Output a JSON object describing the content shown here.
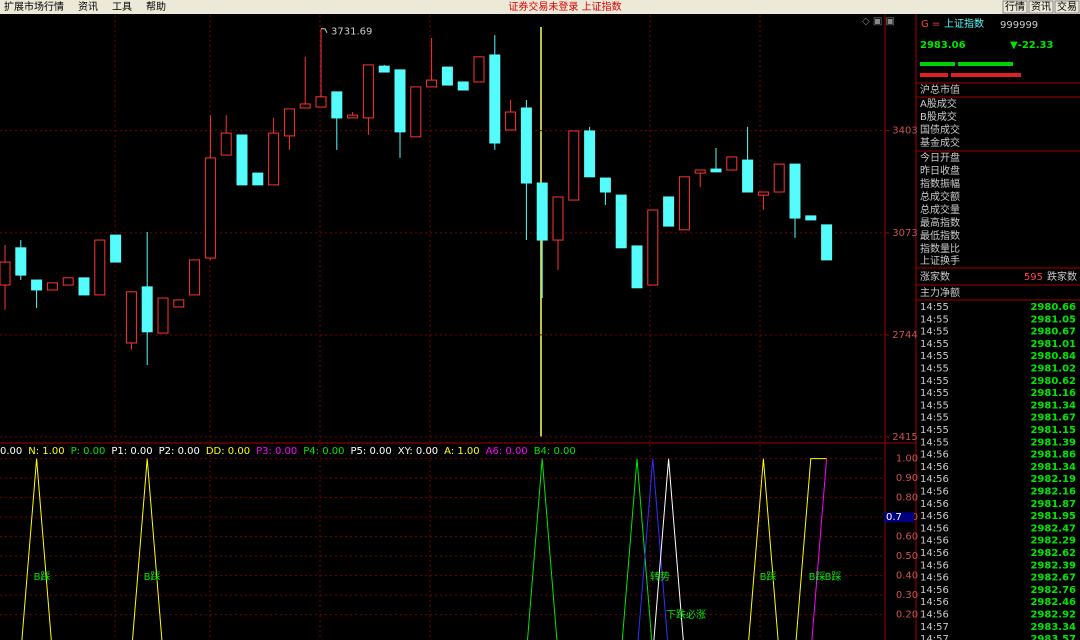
{
  "menu": [
    "扩展市场行情",
    "资讯",
    "工具",
    "帮助"
  ],
  "status": "证券交易未登录 上证指数",
  "buttons": [
    "行情",
    "资讯",
    "交易"
  ],
  "chart_data": {
    "type": "candlestick",
    "candles": [
      {
        "open": 2905,
        "high": 3034,
        "low": 2825,
        "close": 2979
      },
      {
        "open": 3025,
        "high": 3050,
        "low": 2921,
        "close": 2937
      },
      {
        "open": 2921,
        "high": 2921,
        "low": 2831,
        "close": 2889
      },
      {
        "open": 2889,
        "high": 2912,
        "low": 2889,
        "close": 2912
      },
      {
        "open": 2905,
        "high": 2928,
        "low": 2905,
        "close": 2928
      },
      {
        "open": 2928,
        "high": 2928,
        "low": 2873,
        "close": 2873
      },
      {
        "open": 2873,
        "high": 3050,
        "low": 2873,
        "close": 3050
      },
      {
        "open": 3066,
        "high": 3066,
        "low": 2979,
        "close": 2979
      },
      {
        "open": 2718,
        "high": 2883,
        "low": 2696,
        "close": 2883
      },
      {
        "open": 2899,
        "high": 3076,
        "low": 2647,
        "close": 2754
      },
      {
        "open": 2750,
        "high": 2863,
        "low": 2750,
        "close": 2863
      },
      {
        "open": 2834,
        "high": 2857,
        "low": 2834,
        "close": 2857
      },
      {
        "open": 2873,
        "high": 2986,
        "low": 2873,
        "close": 2986
      },
      {
        "open": 2992,
        "high": 3453,
        "low": 2986,
        "close": 3315
      },
      {
        "open": 3324,
        "high": 3453,
        "low": 3324,
        "close": 3395
      },
      {
        "open": 3389,
        "high": 3389,
        "low": 3228,
        "close": 3228
      },
      {
        "open": 3266,
        "high": 3266,
        "low": 3228,
        "close": 3228
      },
      {
        "open": 3228,
        "high": 3444,
        "low": 3228,
        "close": 3395
      },
      {
        "open": 3386,
        "high": 3473,
        "low": 3341,
        "close": 3473
      },
      {
        "open": 3476,
        "high": 3641,
        "low": 3476,
        "close": 3489
      },
      {
        "open": 3479,
        "high": 3731.69,
        "low": 3479,
        "close": 3512
      },
      {
        "open": 3528,
        "high": 3528,
        "low": 3341,
        "close": 3444
      },
      {
        "open": 3444,
        "high": 3463,
        "low": 3444,
        "close": 3453
      },
      {
        "open": 3444,
        "high": 3615,
        "low": 3389,
        "close": 3615
      },
      {
        "open": 3611,
        "high": 3615,
        "low": 3592,
        "close": 3592
      },
      {
        "open": 3599,
        "high": 3599,
        "low": 3315,
        "close": 3399
      },
      {
        "open": 3383,
        "high": 3544,
        "low": 3383,
        "close": 3544
      },
      {
        "open": 3544,
        "high": 3702,
        "low": 3544,
        "close": 3566
      },
      {
        "open": 3608,
        "high": 3608,
        "low": 3550,
        "close": 3550
      },
      {
        "open": 3560,
        "high": 3560,
        "low": 3534,
        "close": 3534
      },
      {
        "open": 3560,
        "high": 3641,
        "low": 3560,
        "close": 3641
      },
      {
        "open": 3647,
        "high": 3711,
        "low": 3341,
        "close": 3363
      },
      {
        "open": 3405,
        "high": 3502,
        "low": 3405,
        "close": 3463
      },
      {
        "open": 3476,
        "high": 3502,
        "low": 3050,
        "close": 3234
      },
      {
        "open": 3234,
        "high": 3234,
        "low": 2863,
        "close": 3050
      },
      {
        "open": 3050,
        "high": 3189,
        "low": 2954,
        "close": 3189
      },
      {
        "open": 3179,
        "high": 3402,
        "low": 3179,
        "close": 3402
      },
      {
        "open": 3402,
        "high": 3415,
        "low": 3254,
        "close": 3254
      },
      {
        "open": 3250,
        "high": 3250,
        "low": 3163,
        "close": 3205
      },
      {
        "open": 3195,
        "high": 3195,
        "low": 3025,
        "close": 3025
      },
      {
        "open": 3031,
        "high": 3031,
        "low": 2896,
        "close": 2896
      },
      {
        "open": 2905,
        "high": 3147,
        "low": 2905,
        "close": 3147
      },
      {
        "open": 3189,
        "high": 3189,
        "low": 3095,
        "close": 3095
      },
      {
        "open": 3083,
        "high": 3254,
        "low": 3083,
        "close": 3254
      },
      {
        "open": 3266,
        "high": 3276,
        "low": 3221,
        "close": 3276
      },
      {
        "open": 3279,
        "high": 3347,
        "low": 3270,
        "close": 3270
      },
      {
        "open": 3276,
        "high": 3318,
        "low": 3276,
        "close": 3318
      },
      {
        "open": 3308,
        "high": 3415,
        "low": 3205,
        "close": 3205
      },
      {
        "open": 3195,
        "high": 3205,
        "low": 3147,
        "close": 3205
      },
      {
        "open": 3205,
        "high": 3295,
        "low": 3205,
        "close": 3295
      },
      {
        "open": 3295,
        "high": 3295,
        "low": 3057,
        "close": 3121
      },
      {
        "open": 3128,
        "high": 3128,
        "low": 3115,
        "close": 3115
      },
      {
        "open": 3099,
        "high": 3099,
        "low": 2986,
        "close": 2986
      }
    ],
    "up_color": "#ff3232",
    "down_color": "#54fcfc",
    "max_label": 3731.69,
    "ylim": [
      2405,
      3776
    ],
    "yticks": [
      3403,
      3073,
      2744,
      2415
    ]
  },
  "indicator": {
    "type": "line",
    "legend": [
      {
        "text": "0.00",
        "color": "#ffffff"
      },
      {
        "text": "N: 1.00",
        "color": "#ffff00"
      },
      {
        "text": "P: 0.00",
        "color": "#00e600"
      },
      {
        "text": "P1: 0.00",
        "color": "#ffffff"
      },
      {
        "text": "P2: 0.00",
        "color": "#ffffff"
      },
      {
        "text": "DD: 0.00",
        "color": "#ffff00"
      },
      {
        "text": "P3: 0.00",
        "color": "#ff00ff"
      },
      {
        "text": "P4: 0.00",
        "color": "#00e600"
      },
      {
        "text": "P5: 0.00",
        "color": "#ffffff"
      },
      {
        "text": "XY: 0.00",
        "color": "#ffffff"
      },
      {
        "text": "A: 1.00",
        "color": "#ffff00"
      },
      {
        "text": "A6: 0.00",
        "color": "#ff00ff"
      },
      {
        "text": "B4: 0.00",
        "color": "#00e600"
      }
    ],
    "series": [
      {
        "color": "#ffff00",
        "values": [
          0,
          0,
          1,
          0,
          0,
          0,
          0,
          0,
          0,
          1,
          0,
          0,
          0,
          0,
          0,
          0,
          0,
          0,
          0,
          0,
          0,
          0,
          0,
          0,
          0,
          0,
          0,
          0,
          0,
          0,
          0,
          0,
          0,
          0,
          0,
          0,
          0,
          0,
          0,
          0,
          0,
          0,
          0,
          0,
          0,
          0,
          0,
          0,
          1,
          0,
          0,
          1,
          1
        ]
      },
      {
        "color": "#00e600",
        "values": [
          0,
          0,
          0,
          0,
          0,
          0,
          0,
          0,
          0,
          0,
          0,
          0,
          0,
          0,
          0,
          0,
          0,
          0,
          0,
          0,
          0,
          0,
          0,
          0,
          0,
          0,
          0,
          0,
          0,
          0,
          0,
          0,
          0,
          0,
          1,
          0,
          0,
          0,
          0,
          0,
          1,
          0,
          0,
          0,
          0,
          0,
          0,
          0,
          0,
          0,
          0,
          0,
          0
        ]
      },
      {
        "color": "#3030ff",
        "values": [
          0,
          0,
          0,
          0,
          0,
          0,
          0,
          0,
          0,
          0,
          0,
          0,
          0,
          0,
          0,
          0,
          0,
          0,
          0,
          0,
          0,
          0,
          0,
          0,
          0,
          0,
          0,
          0,
          0,
          0,
          0,
          0,
          0,
          0,
          0,
          0,
          0,
          0,
          0,
          0,
          0,
          1,
          0,
          0,
          0,
          0,
          0,
          0,
          0,
          0,
          0,
          0,
          0
        ]
      },
      {
        "color": "#ffffff",
        "values": [
          0,
          0,
          0,
          0,
          0,
          0,
          0,
          0,
          0,
          0,
          0,
          0,
          0,
          0,
          0,
          0,
          0,
          0,
          0,
          0,
          0,
          0,
          0,
          0,
          0,
          0,
          0,
          0,
          0,
          0,
          0,
          0,
          0,
          0,
          0,
          0,
          0,
          0,
          0,
          0,
          0,
          0,
          1,
          0,
          0,
          0,
          0,
          0,
          0,
          0,
          0,
          0,
          0
        ]
      },
      {
        "color": "#ff00ff",
        "values": [
          0,
          0,
          0,
          0,
          0,
          0,
          0,
          0,
          0,
          0,
          0,
          0,
          0,
          0,
          0,
          0,
          0,
          0,
          0,
          0,
          0,
          0,
          0,
          0,
          0,
          0,
          0,
          0,
          0,
          0,
          0,
          0,
          0,
          0,
          0,
          0,
          0,
          0,
          0,
          0,
          0,
          0,
          0,
          0,
          0,
          0,
          0,
          0,
          0,
          0,
          0,
          0,
          1
        ]
      }
    ],
    "annotations": [
      "B踩",
      "B踩",
      "转势",
      "下跌必涨",
      "B踩",
      "B踩",
      "B踩"
    ],
    "cursor_value": 0.7,
    "ylim": [
      0.07,
      1.07
    ],
    "yticks": [
      {
        "value": 1,
        "label": "1.00"
      },
      {
        "value": 0.9,
        "label": "0.90"
      },
      {
        "value": 0.8,
        "label": "0.80"
      },
      {
        "value": 0.7,
        "label": "0.70"
      },
      {
        "value": 0.6,
        "label": "0.60"
      },
      {
        "value": 0.5,
        "label": "0.50"
      },
      {
        "value": 0.4,
        "label": "0.40"
      },
      {
        "value": 0.3,
        "label": "0.30"
      },
      {
        "value": 0.2,
        "label": "0.20"
      }
    ]
  },
  "quote": {
    "prefix": "G =",
    "name": "上证指数",
    "code": "999999",
    "price": 2983.06,
    "change": "▼-22.33",
    "fields": [
      "沪总市值",
      "A股成交",
      "B股成交",
      "国债成交",
      "基金成交",
      "今日开盘",
      "昨日收盘",
      "指数振幅",
      "总成交额",
      "总成交量",
      "最高指数",
      "最低指数",
      "指数量比",
      "上证换手"
    ],
    "up_label": "涨家数",
    "up_count": 595,
    "down_label": "跌家数",
    "net_label": "主力净额",
    "ticks": [
      [
        "14:55",
        2980.66
      ],
      [
        "14:55",
        2981.05
      ],
      [
        "14:55",
        2980.67
      ],
      [
        "14:55",
        2981.01
      ],
      [
        "14:55",
        2980.84
      ],
      [
        "14:55",
        2981.02
      ],
      [
        "14:55",
        2980.62
      ],
      [
        "14:55",
        2981.16
      ],
      [
        "14:55",
        2981.34
      ],
      [
        "14:55",
        2981.67
      ],
      [
        "14:55",
        2981.15
      ],
      [
        "14:55",
        2981.39
      ],
      [
        "14:56",
        2981.86
      ],
      [
        "14:56",
        2981.34
      ],
      [
        "14:56",
        2982.19
      ],
      [
        "14:56",
        2982.16
      ],
      [
        "14:56",
        2981.87
      ],
      [
        "14:56",
        2981.95
      ],
      [
        "14:56",
        2982.47
      ],
      [
        "14:56",
        2982.29
      ],
      [
        "14:56",
        2982.62
      ],
      [
        "14:56",
        2982.39
      ],
      [
        "14:56",
        2982.67
      ],
      [
        "14:56",
        2982.76
      ],
      [
        "14:56",
        2982.46
      ],
      [
        "14:56",
        2982.92
      ],
      [
        "14:57",
        2983.34
      ],
      [
        "14:57",
        2983.57
      ]
    ]
  }
}
